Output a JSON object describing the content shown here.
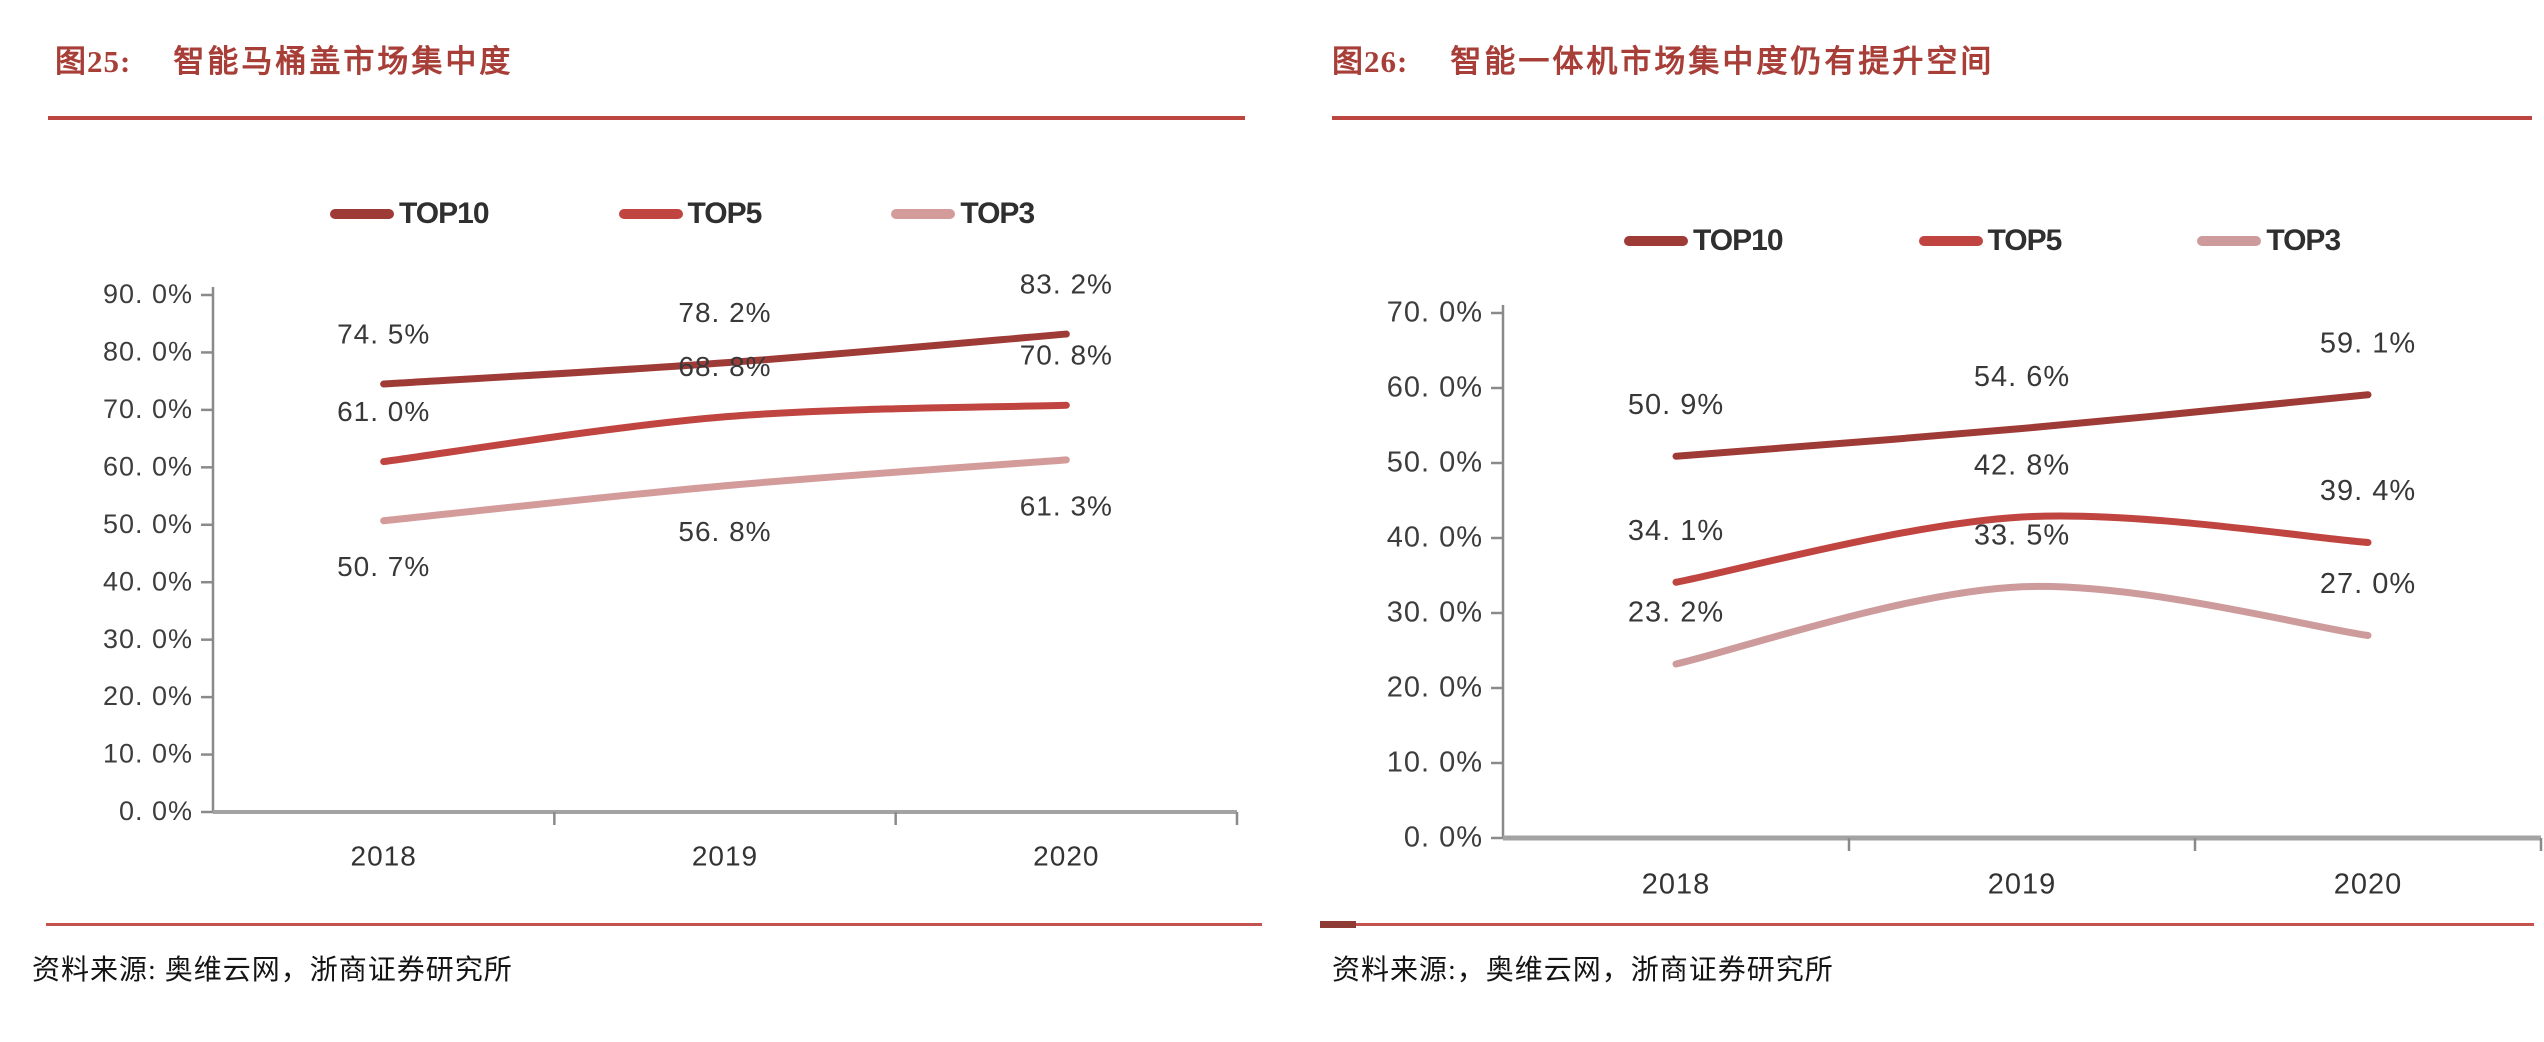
{
  "page": {
    "background": "#ffffff"
  },
  "colors": {
    "title_red": "#a83e38",
    "separator_red": "#bc4540",
    "axis_gray": "#a3a3a3",
    "tick_gray": "#7f7f7f",
    "text_dark": "#383838"
  },
  "figures": [
    {
      "label": "图25:",
      "title": "智能马桶盖市场集中度",
      "source": "资料来源: 奥维云网，浙商证券研究所",
      "chart_data": {
        "type": "line",
        "title": "智能马桶盖市场集中度",
        "xlabel": "",
        "ylabel": "",
        "categories": [
          "2018",
          "2019",
          "2020"
        ],
        "series": [
          {
            "name": "TOP10",
            "values": [
              74.5,
              78.2,
              83.2
            ],
            "point_labels": [
              "74. 5%",
              "78. 2%",
              "83. 2%"
            ],
            "color": "#9f3b37",
            "label_side": "above"
          },
          {
            "name": "TOP5",
            "values": [
              61.0,
              68.8,
              70.8
            ],
            "point_labels": [
              "61. 0%",
              "68. 8%",
              "70. 8%"
            ],
            "color": "#c04541",
            "label_side": "above"
          },
          {
            "name": "TOP3",
            "values": [
              50.7,
              56.8,
              61.3
            ],
            "point_labels": [
              "50. 7%",
              "56. 8%",
              "61. 3%"
            ],
            "color": "#d39c9b",
            "label_side": "below"
          }
        ],
        "ylim": [
          0,
          90
        ],
        "ytick_step": 10,
        "ytick_labels": [
          "0. 0%",
          "10. 0%",
          "20. 0%",
          "30. 0%",
          "40. 0%",
          "50. 0%",
          "60. 0%",
          "70. 0%",
          "80. 0%",
          "90. 0%"
        ],
        "legend_position": "top",
        "grid": false,
        "smooth": true,
        "value_suffix": "%"
      }
    },
    {
      "label": "图26:",
      "title": "智能一体机市场集中度仍有提升空间",
      "source": "资料来源:，奥维云网，浙商证券研究所",
      "chart_data": {
        "type": "line",
        "title": "智能一体机市场集中度仍有提升空间",
        "xlabel": "",
        "ylabel": "",
        "categories": [
          "2018",
          "2019",
          "2020"
        ],
        "series": [
          {
            "name": "TOP10",
            "values": [
              50.9,
              54.6,
              59.1
            ],
            "point_labels": [
              "50. 9%",
              "54. 6%",
              "59. 1%"
            ],
            "color": "#9f3b37",
            "label_side": "above"
          },
          {
            "name": "TOP5",
            "values": [
              34.1,
              42.8,
              39.4
            ],
            "point_labels": [
              "34. 1%",
              "42. 8%",
              "39. 4%"
            ],
            "color": "#c04541",
            "label_side": "above"
          },
          {
            "name": "TOP3",
            "values": [
              23.2,
              33.5,
              27.0
            ],
            "point_labels": [
              "23. 2%",
              "33. 5%",
              "27. 0%"
            ],
            "color": "#cd9b9b",
            "label_side": "above"
          }
        ],
        "ylim": [
          0,
          70
        ],
        "ytick_step": 10,
        "ytick_labels": [
          "0. 0%",
          "10. 0%",
          "20. 0%",
          "30. 0%",
          "40. 0%",
          "50. 0%",
          "60. 0%",
          "70. 0%"
        ],
        "legend_position": "top",
        "grid": false,
        "smooth": true,
        "value_suffix": "%"
      }
    }
  ]
}
